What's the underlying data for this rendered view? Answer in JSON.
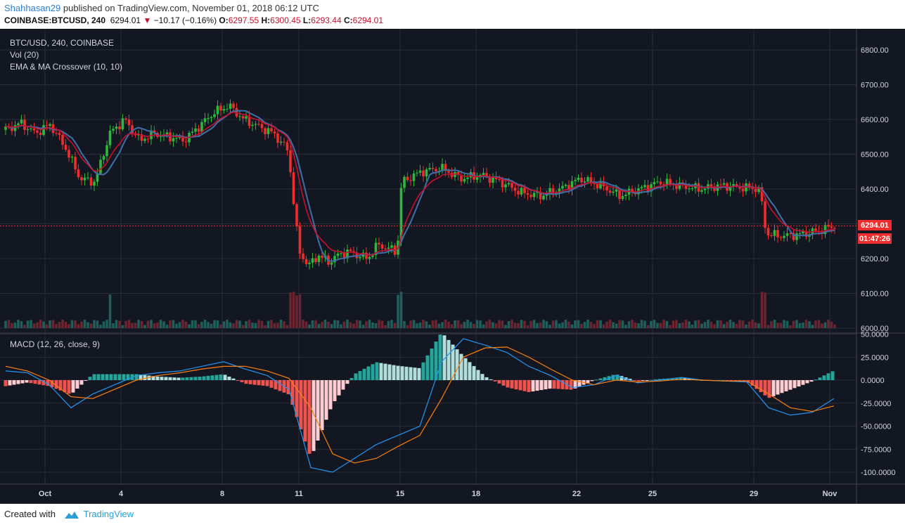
{
  "header": {
    "user": "Shahhasan29",
    "published_text": "published on TradingView.com, November 01, 2018 06:12 UTC",
    "symbol": "COINBASE:BTCUSD, 240",
    "last": "6294.01",
    "change": "−10.17 (−0.16%)",
    "o_label": "O:",
    "o": "6297.55",
    "h_label": "H:",
    "h": "6300.45",
    "l_label": "L:",
    "l": "6293.44",
    "c_label": "C:",
    "c": "6294.01"
  },
  "legend": {
    "line1": "BTC/USD, 240, COINBASE",
    "line2": "Vol (20)",
    "line3": "EMA & MA Crossover (10, 10)",
    "macd": "MACD (12, 26, close, 9)"
  },
  "price_tag": "6294.01",
  "time_tag": "01:47:26",
  "footer": {
    "created_with": "Created with",
    "brand": "TradingView"
  },
  "colors": {
    "background": "#131722",
    "grid": "#2a2e39",
    "up": "#26a69a",
    "candle_up": "#2db83d",
    "down": "#ef2d2d",
    "ema": "#c8102e",
    "ma": "#3f6fa8",
    "macd": "#2196f3",
    "signal": "#ff7f0e",
    "hist_pos_dark": "#26a69a",
    "hist_pos_light": "#b2dfdb",
    "hist_neg_dark": "#ef5350",
    "hist_neg_light": "#ffcdd2"
  },
  "chart_data": [
    {
      "type": "candlestick",
      "title": "BTC/USD, 240, COINBASE",
      "ylim": [
        6000,
        6850
      ],
      "yticks": [
        "6000.00",
        "6100.00",
        "6200.00",
        "6300.00",
        "6400.00",
        "6500.00",
        "6600.00",
        "6700.00",
        "6800.00"
      ],
      "xticks": [
        "Oct",
        "4",
        "8",
        "11",
        "15",
        "18",
        "22",
        "25",
        "29",
        "Nov"
      ],
      "last_price": 6294.01,
      "segments": [
        {
          "from": "Sep 29",
          "to": "Oct 10",
          "price": [
            6570,
            6590,
            6560,
            6585,
            6520,
            6430,
            6420,
            6560,
            6600,
            6540,
            6560,
            6550,
            6540,
            6580,
            6620,
            6640,
            6600,
            6580,
            6560,
            6510
          ]
        },
        {
          "from": "Oct 11",
          "to": "Oct 14",
          "price": [
            6220,
            6180,
            6210,
            6190,
            6210,
            6220,
            6210,
            6200,
            6240,
            6230,
            6220
          ]
        },
        {
          "from": "Oct 15",
          "to": "Oct 29",
          "price": [
            6420,
            6450,
            6460,
            6430,
            6440,
            6420,
            6390,
            6380,
            6400,
            6430,
            6410,
            6380,
            6400,
            6420,
            6410,
            6400,
            6410,
            6405,
            6400
          ]
        },
        {
          "from": "Oct 30",
          "to": "Nov 1",
          "price": [
            6270,
            6265,
            6270,
            6280,
            6294
          ]
        }
      ]
    },
    {
      "type": "bar",
      "title": "Vol (20)",
      "notes": "volume bars at the base of the price pane"
    },
    {
      "type": "line",
      "title": "MACD (12, 26, close, 9)",
      "ylim": [
        -105,
        50
      ],
      "yticks": [
        "50.0000",
        "25.0000",
        "0.0000",
        "-25.0000",
        "-50.0000",
        "-75.0000",
        "-100.0000"
      ],
      "series": [
        {
          "name": "MACD",
          "values": [
            10,
            8,
            -5,
            -30,
            -15,
            -5,
            5,
            8,
            10,
            15,
            20,
            12,
            5,
            -10,
            -95,
            -100,
            -85,
            -70,
            -60,
            -50,
            20,
            45,
            38,
            30,
            15,
            5,
            -8,
            -5,
            5,
            -3,
            0,
            3,
            0,
            -1,
            -2,
            -30,
            -38,
            -35,
            -20
          ]
        },
        {
          "name": "Signal",
          "values": [
            15,
            10,
            0,
            -18,
            -20,
            -10,
            0,
            5,
            8,
            12,
            15,
            15,
            10,
            2,
            -30,
            -80,
            -90,
            -85,
            -72,
            -60,
            -20,
            25,
            35,
            36,
            25,
            12,
            0,
            -5,
            0,
            -2,
            -1,
            1,
            0,
            -1,
            -1,
            -15,
            -30,
            -34,
            -28
          ]
        }
      ]
    }
  ]
}
